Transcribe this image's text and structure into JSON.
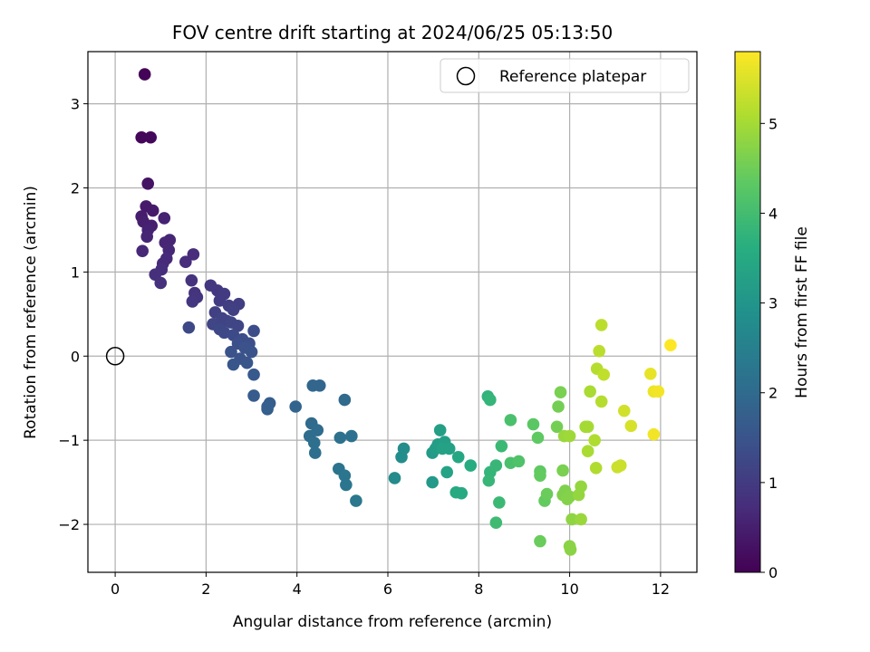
{
  "chart_data": {
    "type": "scatter",
    "title": "FOV centre drift starting at 2024/06/25 05:13:50",
    "xlabel": "Angular distance from reference (arcmin)",
    "ylabel": "Rotation from reference (arcmin)",
    "xlim": [
      -0.6,
      12.8
    ],
    "ylim": [
      -2.57,
      3.62
    ],
    "xticks": [
      0,
      2,
      4,
      6,
      8,
      10,
      12
    ],
    "yticks": [
      -2,
      -1,
      0,
      1,
      2,
      3
    ],
    "grid": true,
    "legend": {
      "placement": "upper-right",
      "entries": [
        "Reference platepar"
      ]
    },
    "colorbar": {
      "label": "Hours from first FF file",
      "colormap": "viridis",
      "range": [
        0,
        5.8
      ],
      "ticks": [
        0,
        1,
        2,
        3,
        4,
        5
      ]
    },
    "reference_point": {
      "x": 0,
      "y": 0,
      "label": "Reference platepar"
    },
    "points": [
      {
        "x": 0.65,
        "y": 3.35,
        "h": 0.05
      },
      {
        "x": 0.58,
        "y": 2.6,
        "h": 0.1
      },
      {
        "x": 0.78,
        "y": 2.6,
        "h": 0.12
      },
      {
        "x": 0.72,
        "y": 2.05,
        "h": 0.3
      },
      {
        "x": 0.68,
        "y": 1.78,
        "h": 0.4
      },
      {
        "x": 0.83,
        "y": 1.73,
        "h": 0.42
      },
      {
        "x": 0.58,
        "y": 1.66,
        "h": 0.45
      },
      {
        "x": 0.62,
        "y": 1.6,
        "h": 0.5
      },
      {
        "x": 0.8,
        "y": 1.55,
        "h": 0.5
      },
      {
        "x": 0.72,
        "y": 1.5,
        "h": 0.55
      },
      {
        "x": 1.08,
        "y": 1.64,
        "h": 0.55
      },
      {
        "x": 0.7,
        "y": 1.42,
        "h": 0.6
      },
      {
        "x": 1.2,
        "y": 1.38,
        "h": 0.62
      },
      {
        "x": 1.1,
        "y": 1.35,
        "h": 0.62
      },
      {
        "x": 0.6,
        "y": 1.25,
        "h": 0.65
      },
      {
        "x": 1.18,
        "y": 1.26,
        "h": 0.65
      },
      {
        "x": 1.13,
        "y": 1.16,
        "h": 0.68
      },
      {
        "x": 1.05,
        "y": 1.1,
        "h": 0.7
      },
      {
        "x": 1.72,
        "y": 1.21,
        "h": 0.72
      },
      {
        "x": 1.55,
        "y": 1.12,
        "h": 0.72
      },
      {
        "x": 1.02,
        "y": 1.03,
        "h": 0.75
      },
      {
        "x": 0.88,
        "y": 0.97,
        "h": 0.78
      },
      {
        "x": 1.0,
        "y": 0.87,
        "h": 0.8
      },
      {
        "x": 1.68,
        "y": 0.9,
        "h": 0.85
      },
      {
        "x": 1.75,
        "y": 0.75,
        "h": 0.85
      },
      {
        "x": 1.8,
        "y": 0.7,
        "h": 0.88
      },
      {
        "x": 1.7,
        "y": 0.65,
        "h": 0.9
      },
      {
        "x": 2.1,
        "y": 0.84,
        "h": 0.95
      },
      {
        "x": 2.25,
        "y": 0.78,
        "h": 0.95
      },
      {
        "x": 2.4,
        "y": 0.74,
        "h": 1.0
      },
      {
        "x": 2.3,
        "y": 0.66,
        "h": 1.0
      },
      {
        "x": 2.5,
        "y": 0.6,
        "h": 1.05
      },
      {
        "x": 2.72,
        "y": 0.62,
        "h": 1.05
      },
      {
        "x": 2.2,
        "y": 0.52,
        "h": 1.1
      },
      {
        "x": 2.6,
        "y": 0.55,
        "h": 1.1
      },
      {
        "x": 2.35,
        "y": 0.45,
        "h": 1.15
      },
      {
        "x": 2.45,
        "y": 0.42,
        "h": 1.15
      },
      {
        "x": 2.15,
        "y": 0.38,
        "h": 1.2
      },
      {
        "x": 2.55,
        "y": 0.4,
        "h": 1.2
      },
      {
        "x": 2.7,
        "y": 0.36,
        "h": 1.2
      },
      {
        "x": 2.3,
        "y": 0.32,
        "h": 1.25
      },
      {
        "x": 2.4,
        "y": 0.28,
        "h": 1.25
      },
      {
        "x": 1.62,
        "y": 0.34,
        "h": 1.25
      },
      {
        "x": 2.6,
        "y": 0.25,
        "h": 1.3
      },
      {
        "x": 3.05,
        "y": 0.3,
        "h": 1.35
      },
      {
        "x": 2.8,
        "y": 0.2,
        "h": 1.35
      },
      {
        "x": 2.7,
        "y": 0.15,
        "h": 1.4
      },
      {
        "x": 2.95,
        "y": 0.15,
        "h": 1.4
      },
      {
        "x": 2.85,
        "y": 0.1,
        "h": 1.45
      },
      {
        "x": 2.55,
        "y": 0.05,
        "h": 1.45
      },
      {
        "x": 3.0,
        "y": 0.05,
        "h": 1.5
      },
      {
        "x": 2.75,
        "y": -0.03,
        "h": 1.5
      },
      {
        "x": 2.9,
        "y": -0.08,
        "h": 1.55
      },
      {
        "x": 2.6,
        "y": -0.1,
        "h": 1.55
      },
      {
        "x": 3.05,
        "y": -0.22,
        "h": 1.6
      },
      {
        "x": 3.05,
        "y": -0.47,
        "h": 1.65
      },
      {
        "x": 3.4,
        "y": -0.56,
        "h": 1.7
      },
      {
        "x": 3.35,
        "y": -0.63,
        "h": 1.72
      },
      {
        "x": 3.35,
        "y": -0.6,
        "h": 1.75
      },
      {
        "x": 3.97,
        "y": -0.6,
        "h": 1.85
      },
      {
        "x": 4.35,
        "y": -0.35,
        "h": 1.9
      },
      {
        "x": 4.5,
        "y": -0.35,
        "h": 1.9
      },
      {
        "x": 5.05,
        "y": -0.52,
        "h": 2.0
      },
      {
        "x": 4.32,
        "y": -0.8,
        "h": 2.0
      },
      {
        "x": 4.45,
        "y": -0.88,
        "h": 2.05
      },
      {
        "x": 4.28,
        "y": -0.95,
        "h": 2.05
      },
      {
        "x": 4.38,
        "y": -1.03,
        "h": 2.1
      },
      {
        "x": 4.4,
        "y": -1.15,
        "h": 2.1
      },
      {
        "x": 4.95,
        "y": -0.97,
        "h": 2.15
      },
      {
        "x": 5.2,
        "y": -0.95,
        "h": 2.15
      },
      {
        "x": 4.92,
        "y": -1.34,
        "h": 2.2
      },
      {
        "x": 5.05,
        "y": -1.42,
        "h": 2.25
      },
      {
        "x": 5.08,
        "y": -1.53,
        "h": 2.25
      },
      {
        "x": 5.3,
        "y": -1.72,
        "h": 2.3
      },
      {
        "x": 6.15,
        "y": -1.45,
        "h": 2.75
      },
      {
        "x": 6.3,
        "y": -1.2,
        "h": 2.8
      },
      {
        "x": 6.35,
        "y": -1.1,
        "h": 2.8
      },
      {
        "x": 6.98,
        "y": -1.5,
        "h": 3.1
      },
      {
        "x": 6.98,
        "y": -1.15,
        "h": 3.15
      },
      {
        "x": 7.1,
        "y": -1.05,
        "h": 3.2
      },
      {
        "x": 7.05,
        "y": -1.1,
        "h": 3.2
      },
      {
        "x": 7.15,
        "y": -0.88,
        "h": 3.25
      },
      {
        "x": 7.25,
        "y": -1.02,
        "h": 3.25
      },
      {
        "x": 7.35,
        "y": -1.1,
        "h": 3.3
      },
      {
        "x": 7.2,
        "y": -1.1,
        "h": 3.3
      },
      {
        "x": 7.3,
        "y": -1.38,
        "h": 3.35
      },
      {
        "x": 7.55,
        "y": -1.2,
        "h": 3.45
      },
      {
        "x": 7.5,
        "y": -1.62,
        "h": 3.5
      },
      {
        "x": 7.62,
        "y": -1.63,
        "h": 3.5
      },
      {
        "x": 7.82,
        "y": -1.3,
        "h": 3.55
      },
      {
        "x": 8.2,
        "y": -0.48,
        "h": 3.75
      },
      {
        "x": 8.25,
        "y": -0.52,
        "h": 3.8
      },
      {
        "x": 8.25,
        "y": -1.38,
        "h": 3.8
      },
      {
        "x": 8.22,
        "y": -1.48,
        "h": 3.85
      },
      {
        "x": 8.38,
        "y": -1.3,
        "h": 3.85
      },
      {
        "x": 8.5,
        "y": -1.07,
        "h": 3.9
      },
      {
        "x": 8.45,
        "y": -1.74,
        "h": 3.9
      },
      {
        "x": 8.38,
        "y": -1.98,
        "h": 3.95
      },
      {
        "x": 8.7,
        "y": -0.76,
        "h": 4.1
      },
      {
        "x": 8.7,
        "y": -1.27,
        "h": 4.1
      },
      {
        "x": 8.88,
        "y": -1.25,
        "h": 4.15
      },
      {
        "x": 9.2,
        "y": -0.81,
        "h": 4.3
      },
      {
        "x": 9.3,
        "y": -0.97,
        "h": 4.35
      },
      {
        "x": 9.35,
        "y": -1.37,
        "h": 4.35
      },
      {
        "x": 9.35,
        "y": -1.42,
        "h": 4.4
      },
      {
        "x": 9.45,
        "y": -1.72,
        "h": 4.4
      },
      {
        "x": 9.5,
        "y": -1.64,
        "h": 4.45
      },
      {
        "x": 9.35,
        "y": -2.2,
        "h": 4.45
      },
      {
        "x": 9.72,
        "y": -0.84,
        "h": 4.55
      },
      {
        "x": 9.75,
        "y": -0.6,
        "h": 4.55
      },
      {
        "x": 9.8,
        "y": -0.43,
        "h": 4.6
      },
      {
        "x": 9.85,
        "y": -1.36,
        "h": 4.6
      },
      {
        "x": 9.85,
        "y": -1.65,
        "h": 4.65
      },
      {
        "x": 9.9,
        "y": -1.6,
        "h": 4.65
      },
      {
        "x": 9.95,
        "y": -1.7,
        "h": 4.7
      },
      {
        "x": 10.0,
        "y": -1.67,
        "h": 4.7
      },
      {
        "x": 10.0,
        "y": -2.26,
        "h": 4.75
      },
      {
        "x": 10.02,
        "y": -2.3,
        "h": 4.75
      },
      {
        "x": 10.05,
        "y": -1.94,
        "h": 4.8
      },
      {
        "x": 10.2,
        "y": -1.65,
        "h": 4.85
      },
      {
        "x": 10.25,
        "y": -1.55,
        "h": 4.85
      },
      {
        "x": 10.25,
        "y": -1.94,
        "h": 4.9
      },
      {
        "x": 9.88,
        "y": -0.95,
        "h": 4.9
      },
      {
        "x": 10.0,
        "y": -0.95,
        "h": 4.95
      },
      {
        "x": 10.35,
        "y": -0.84,
        "h": 5.0
      },
      {
        "x": 10.4,
        "y": -0.84,
        "h": 5.0
      },
      {
        "x": 10.45,
        "y": -0.42,
        "h": 5.05
      },
      {
        "x": 10.4,
        "y": -1.13,
        "h": 5.05
      },
      {
        "x": 10.55,
        "y": -1.0,
        "h": 5.1
      },
      {
        "x": 10.58,
        "y": -1.33,
        "h": 5.1
      },
      {
        "x": 10.6,
        "y": -0.15,
        "h": 5.15
      },
      {
        "x": 10.7,
        "y": -0.54,
        "h": 5.15
      },
      {
        "x": 10.65,
        "y": 0.06,
        "h": 5.2
      },
      {
        "x": 10.7,
        "y": 0.37,
        "h": 5.2
      },
      {
        "x": 10.75,
        "y": -0.22,
        "h": 5.25
      },
      {
        "x": 11.05,
        "y": -1.32,
        "h": 5.35
      },
      {
        "x": 11.12,
        "y": -1.3,
        "h": 5.35
      },
      {
        "x": 11.2,
        "y": -0.65,
        "h": 5.4
      },
      {
        "x": 11.35,
        "y": -0.83,
        "h": 5.45
      },
      {
        "x": 11.78,
        "y": -0.21,
        "h": 5.6
      },
      {
        "x": 11.85,
        "y": -0.42,
        "h": 5.65
      },
      {
        "x": 11.95,
        "y": -0.42,
        "h": 5.7
      },
      {
        "x": 11.85,
        "y": -0.93,
        "h": 5.7
      },
      {
        "x": 12.22,
        "y": 0.13,
        "h": 5.8
      }
    ]
  }
}
